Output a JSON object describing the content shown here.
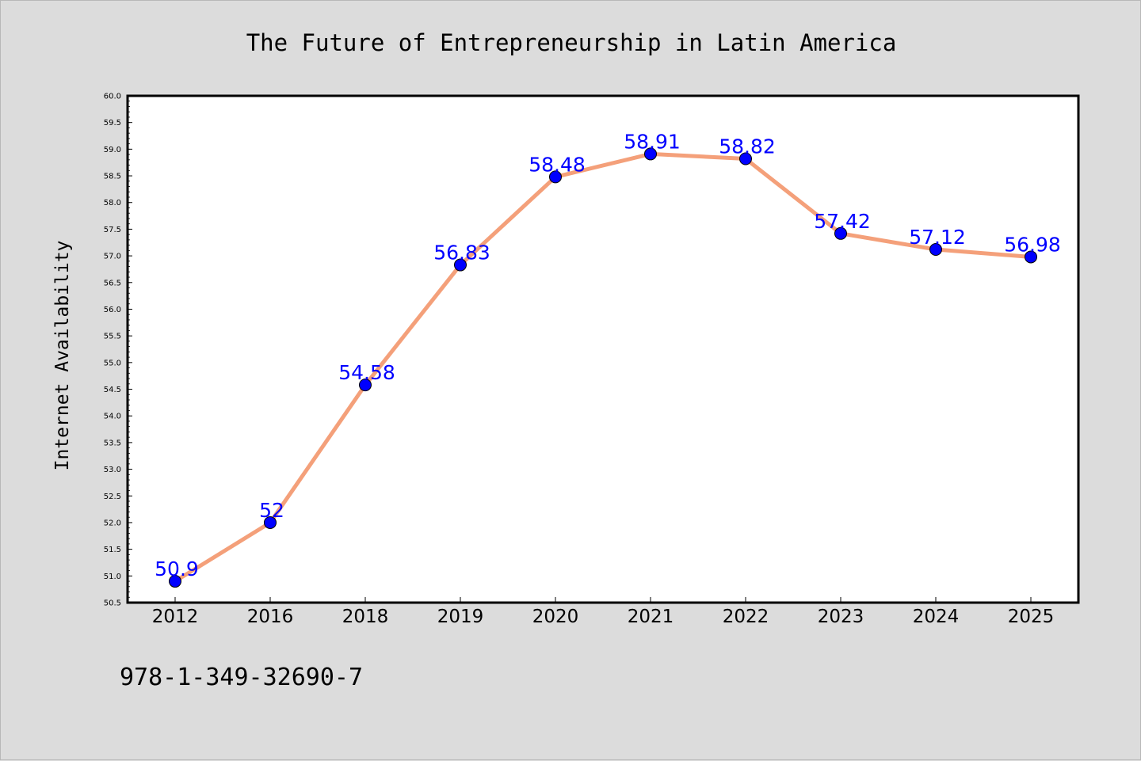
{
  "chart_data": {
    "type": "line",
    "title": "The Future of Entrepreneurship in Latin America",
    "xlabel": "",
    "ylabel": "Internet Availability",
    "categories": [
      "2012",
      "2016",
      "2018",
      "2019",
      "2020",
      "2021",
      "2022",
      "2023",
      "2024",
      "2025"
    ],
    "series": [
      {
        "values": [
          50.9,
          52,
          54.58,
          56.83,
          58.48,
          58.91,
          58.82,
          57.42,
          57.12,
          56.98
        ],
        "labels": [
          "50.9",
          "52",
          "54.58",
          "56.83",
          "58.48",
          "58.91",
          "58.82",
          "57.42",
          "57.12",
          "56.98"
        ],
        "line_color": "#f4a07a",
        "marker_color": "#0000ff"
      }
    ],
    "ylim": [
      50.5,
      60.0
    ],
    "yticks": [
      "50.5",
      "51.0",
      "51.5",
      "52.0",
      "52.5",
      "53.0",
      "53.5",
      "54.0",
      "54.5",
      "55.0",
      "55.5",
      "56.0",
      "56.5",
      "57.0",
      "57.5",
      "58.0",
      "58.5",
      "59.0",
      "59.5",
      "60.0"
    ],
    "grid": false,
    "legend": "none",
    "label_color": "#0000ff"
  },
  "footer": {
    "text": "978-1-349-32690-7"
  }
}
